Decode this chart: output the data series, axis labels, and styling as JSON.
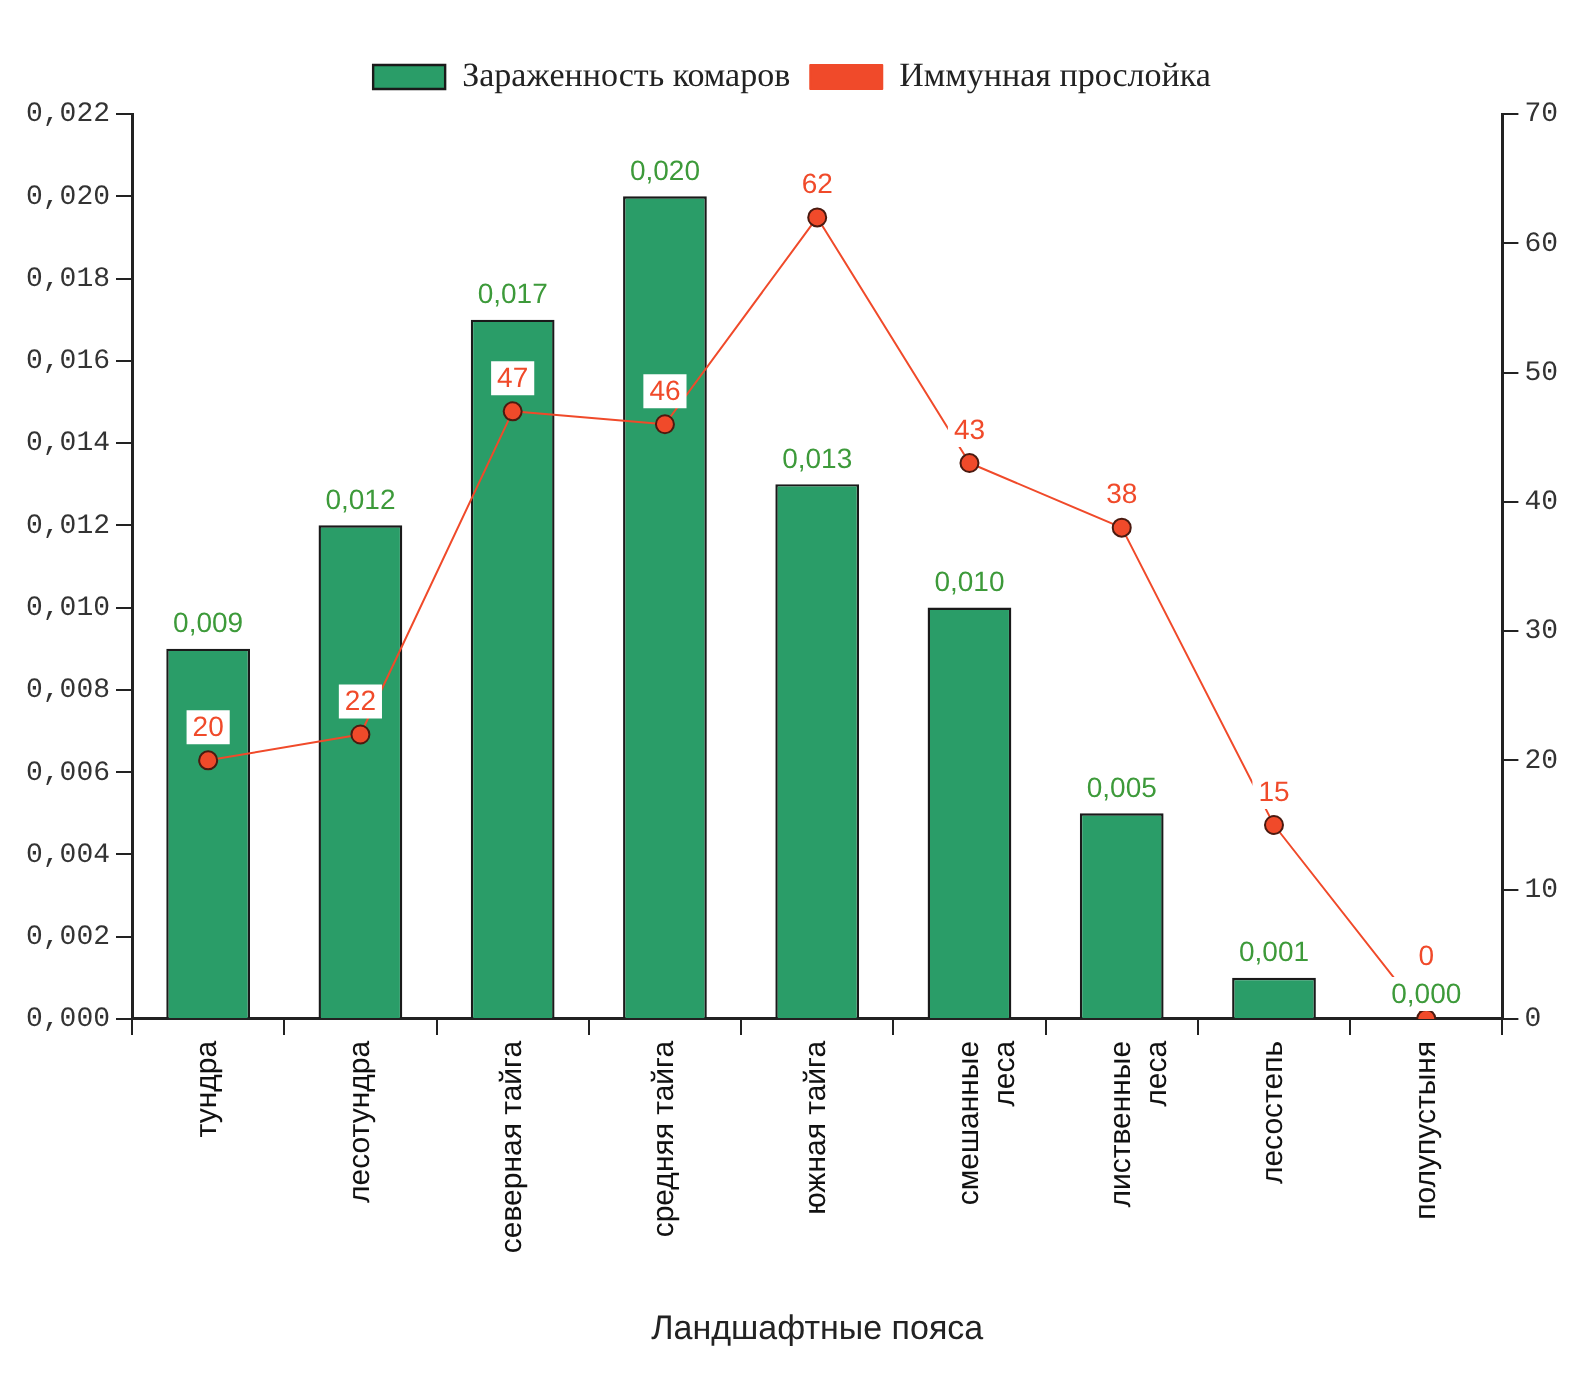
{
  "chart_data": {
    "type": "bar",
    "xlabel": "Ландшафтные пояса",
    "categories": [
      "тундра",
      "лесотундра",
      "северная тайга",
      "средняя тайга",
      "южная тайга",
      "смешанные\nлеса",
      "лиственные\nлеса",
      "лесостепь",
      "полупустыня"
    ],
    "series": [
      {
        "name": "Зараженность комаров",
        "color": "#2a9d68",
        "values": [
          0.009,
          0.012,
          0.017,
          0.02,
          0.013,
          0.01,
          0.005,
          0.001,
          0.0
        ],
        "value_labels": [
          "0,009",
          "0,012",
          "0,017",
          "0,020",
          "0,013",
          "0,010",
          "0,005",
          "0,001",
          "0,000"
        ]
      },
      {
        "name": "Иммунная прослойка",
        "type": "line",
        "axis": "y2",
        "color": "#f04a2a",
        "values": [
          20,
          22,
          47,
          46,
          62,
          43,
          38,
          15,
          0
        ],
        "value_labels": [
          "20",
          "22",
          "47",
          "46",
          "62",
          "43",
          "38",
          "15",
          "0"
        ]
      }
    ],
    "ylim": [
      0,
      0.022
    ],
    "yticks": [
      {
        "value": 0,
        "label": "0,000"
      },
      {
        "value": 0.002,
        "label": "0,002"
      },
      {
        "value": 0.004,
        "label": "0,004"
      },
      {
        "value": 0.006,
        "label": "0,006"
      },
      {
        "value": 0.008,
        "label": "0,008"
      },
      {
        "value": 0.01,
        "label": "0,010"
      },
      {
        "value": 0.012,
        "label": "0,012"
      },
      {
        "value": 0.014,
        "label": "0,014"
      },
      {
        "value": 0.016,
        "label": "0,016"
      },
      {
        "value": 0.018,
        "label": "0,018"
      },
      {
        "value": 0.02,
        "label": "0,020"
      },
      {
        "value": 0.022,
        "label": "0,022"
      }
    ],
    "y2lim": [
      0,
      70
    ],
    "y2ticks": [
      0,
      10,
      20,
      30,
      40,
      50,
      60,
      70
    ],
    "grid": false,
    "legend": "top",
    "marker": "circle",
    "line_style": "solid"
  }
}
